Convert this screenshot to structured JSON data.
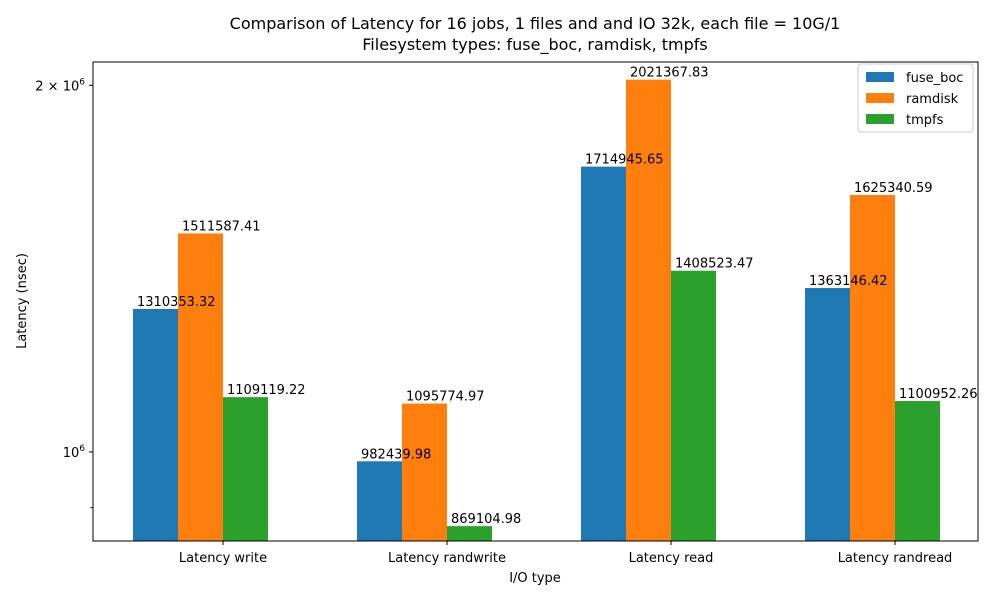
{
  "chart_data": {
    "type": "bar",
    "title_line1": "Comparison of Latency for 16 jobs, 1 files and  and IO 32k, each file = 10G/1",
    "title_line2": "Filesystem types: fuse_boc, ramdisk, tmpfs",
    "xlabel": "I/O type",
    "ylabel": "Latency (nsec)",
    "yscale": "log",
    "ylim": [
      845000,
      2090000
    ],
    "yticks": [
      {
        "value": 1000000,
        "base": "10",
        "exp": "6",
        "coef": ""
      },
      {
        "value": 2000000,
        "base": "10",
        "exp": "6",
        "coef": "2 × "
      }
    ],
    "categories": [
      "Latency write",
      "Latency randwrite",
      "Latency read",
      "Latency randread"
    ],
    "series": [
      {
        "name": "fuse_boc",
        "color": "#1f77b4",
        "values": [
          1310353.32,
          982439.98,
          1714945.65,
          1363146.42
        ]
      },
      {
        "name": "ramdisk",
        "color": "#ff7f0e",
        "values": [
          1511587.41,
          1095774.97,
          2021367.83,
          1625340.59
        ]
      },
      {
        "name": "tmpfs",
        "color": "#2ca02c",
        "values": [
          1109119.22,
          869104.98,
          1408523.47,
          1100952.26
        ]
      }
    ],
    "value_labels": [
      [
        "1310353.32",
        "982439.98",
        "1714945.65",
        "1363146.42"
      ],
      [
        "1511587.41",
        "1095774.97",
        "2021367.83",
        "1625340.59"
      ],
      [
        "1109119.22",
        "869104.98",
        "1408523.47",
        "1100952.26"
      ]
    ],
    "legend_position": "upper-right",
    "grid": false
  }
}
